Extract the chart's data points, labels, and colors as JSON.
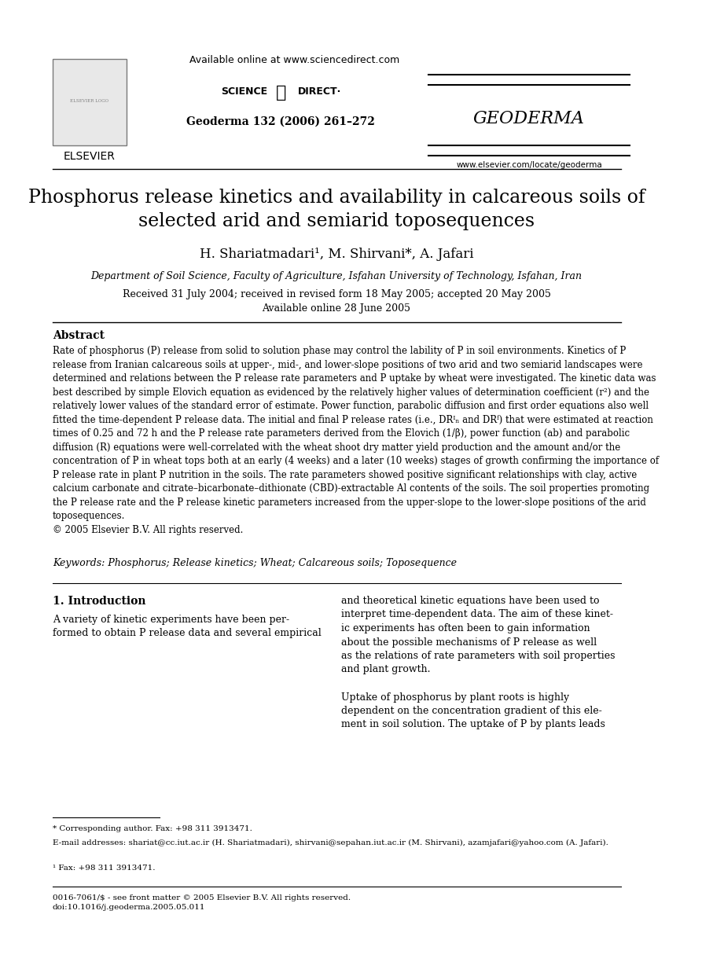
{
  "page_bg": "#ffffff",
  "header": {
    "available_online": "Available online at www.sciencedirect.com",
    "sciencedirect": "SCIENCE ⓐ DIRECT·",
    "journal_info": "Geoderma 132 (2006) 261–272",
    "geoderma": "GEODERMA",
    "elsevier": "ELSEVIER",
    "website": "www.elsevier.com/locate/geoderma"
  },
  "title": "Phosphorus release kinetics and availability in calcareous soils of\nselected arid and semiarid toposequences",
  "authors": "H. Shariatmadari¹, M. Shirvani*, A. Jafari",
  "affiliation": "Department of Soil Science, Faculty of Agriculture, Isfahan University of Technology, Isfahan, Iran",
  "dates": "Received 31 July 2004; received in revised form 18 May 2005; accepted 20 May 2005\nAvailable online 28 June 2005",
  "abstract_title": "Abstract",
  "abstract_text": "Rate of phosphorus (P) release from solid to solution phase may control the lability of P in soil environments. Kinetics of P release from Iranian calcareous soils at upper-, mid-, and lower-slope positions of two arid and two semiarid landscapes were determined and relations between the P release rate parameters and P uptake by wheat were investigated. The kinetic data was best described by simple Elovich equation as evidenced by the relatively higher values of determination coefficient (r²) and the relatively lower values of the standard error of estimate. Power function, parabolic diffusion and first order equations also well fitted the time-dependent P release data. The initial and final P release rates (i.e., DRᴵₙ and DRᶠ) that were estimated at reaction times of 0.25 and 72 h and the P release rate parameters derived from the Elovich (1/β), power function (ab) and parabolic diffusion (R) equations were well-correlated with the wheat shoot dry matter yield production and the amount and/or the concentration of P in wheat tops both at an early (4 weeks) and a later (10 weeks) stages of growth confirming the importance of P release rate in plant P nutrition in the soils. The rate parameters showed positive significant relationships with clay, active calcium carbonate and citrate–bicarbonate–dithionate (CBD)-extractable Al contents of the soils. The soil properties promoting the P release rate and the P release kinetic parameters increased from the upper-slope to the lower-slope positions of the arid toposequences.\n© 2005 Elsevier B.V. All rights reserved.",
  "keywords": "Keywords: Phosphorus; Release kinetics; Wheat; Calcareous soils; Toposequence",
  "section1_title": "1. Introduction",
  "section1_col1": "A variety of kinetic experiments have been performed to obtain P release data and several empirical",
  "section1_col2": "and theoretical kinetic equations have been used to interpret time-dependent data. The aim of these kinetic experiments has often been to gain information about the possible mechanisms of P release as well as the relations of rate parameters with soil properties and plant growth.\n\nUptake of phosphorus by plant roots is highly dependent on the concentration gradient of this element in soil solution. The uptake of P by plants leads",
  "footnote_corresponding": "* Corresponding author. Fax: +98 311 3913471.",
  "footnote_email": "E-mail addresses: shariat@cc.iut.ac.ir (H. Shariatmadari), shirvani@sepahan.iut.ac.ir (M. Shirvani), azamjafari@yahoo.com (A. Jafari).",
  "footnote_fax": "¹ Fax: +98 311 3913471.",
  "footer_left": "0016-7061/$ - see front matter © 2005 Elsevier B.V. All rights reserved.\ndoi:10.1016/j.geoderma.2005.05.011",
  "footer_right": ""
}
